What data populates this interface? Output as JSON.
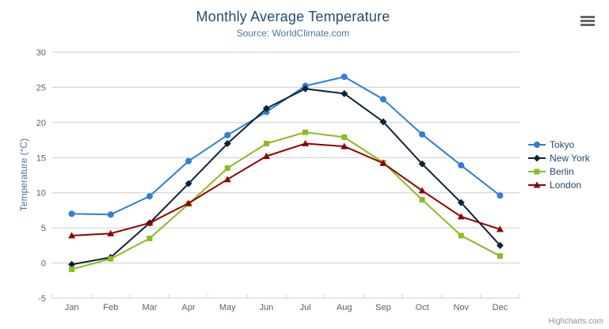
{
  "header": {
    "title": "Monthly Average Temperature",
    "subtitle": "Source: WorldClimate.com"
  },
  "menu": {
    "tooltip": "Chart context menu"
  },
  "credits": "Highcharts.com",
  "colors": {
    "title_text": "#274b6d",
    "subtitle_text": "#4d759e",
    "axis_title_text": "#4d759e",
    "tick_label_text": "#606060",
    "grid_line": "#cccccc",
    "axis_line": "#c0d0e0",
    "legend_text": "#274b6d",
    "credits_text": "#909090",
    "menu_icon": "#666666"
  },
  "chart_data": {
    "type": "line",
    "title": "Monthly Average Temperature",
    "subtitle": "Source: WorldClimate.com",
    "categories": [
      "Jan",
      "Feb",
      "Mar",
      "Apr",
      "May",
      "Jun",
      "Jul",
      "Aug",
      "Sep",
      "Oct",
      "Nov",
      "Dec"
    ],
    "xlabel": "",
    "ylabel": "Temperature (°C)",
    "ylim": [
      -5,
      30
    ],
    "yticks": [
      -5,
      0,
      5,
      10,
      15,
      20,
      25,
      30
    ],
    "grid": true,
    "legend_position": "right",
    "series": [
      {
        "name": "Tokyo",
        "color": "#2f7ed8",
        "marker": "circle",
        "values": [
          7.0,
          6.9,
          9.5,
          14.5,
          18.2,
          21.5,
          25.2,
          26.5,
          23.3,
          18.3,
          13.9,
          9.6
        ]
      },
      {
        "name": "New York",
        "color": "#0d233a",
        "marker": "diamond",
        "values": [
          -0.2,
          0.8,
          5.7,
          11.3,
          17.0,
          22.0,
          24.8,
          24.1,
          20.1,
          14.1,
          8.6,
          2.5
        ]
      },
      {
        "name": "Berlin",
        "color": "#8bbc21",
        "marker": "square",
        "values": [
          -0.9,
          0.6,
          3.5,
          8.4,
          13.5,
          17.0,
          18.6,
          17.9,
          14.3,
          9.0,
          3.9,
          1.0
        ]
      },
      {
        "name": "London",
        "color": "#910000",
        "marker": "triangle",
        "values": [
          3.9,
          4.2,
          5.7,
          8.5,
          11.9,
          15.2,
          17.0,
          16.6,
          14.2,
          10.3,
          6.6,
          4.8
        ]
      }
    ]
  }
}
